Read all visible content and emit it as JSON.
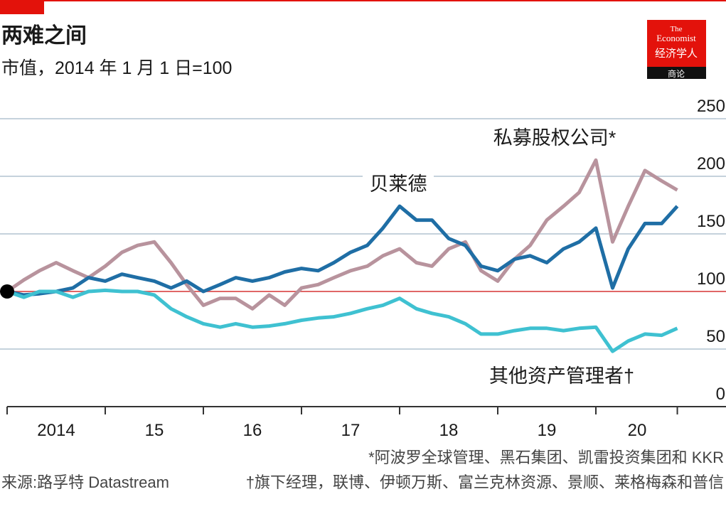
{
  "chart_data": {
    "type": "line",
    "title": "两难之间",
    "subtitle": "市值，2014 年 1 月 1 日=100",
    "source": "来源:路孚特 Datastream",
    "footnotes": [
      "*阿波罗全球管理、黑石集团、凯雷投资集团和 KKR",
      "†旗下经理，联博、伊顿万斯、富兰克林资源、景顺、莱格梅森和普信"
    ],
    "logo": {
      "line1": "The",
      "line2": "Economist",
      "line3": "经济学人",
      "line4": "商论"
    },
    "x": [
      2014,
      2014.17,
      2014.33,
      2014.5,
      2014.67,
      2014.83,
      2015,
      2015.17,
      2015.33,
      2015.5,
      2015.67,
      2015.83,
      2016,
      2016.17,
      2016.33,
      2016.5,
      2016.67,
      2016.83,
      2017,
      2017.17,
      2017.33,
      2017.5,
      2017.67,
      2017.83,
      2018,
      2018.17,
      2018.33,
      2018.5,
      2018.67,
      2018.83,
      2019,
      2019.17,
      2019.33,
      2019.5,
      2019.67,
      2019.83,
      2020,
      2020.17,
      2020.33,
      2020.5,
      2020.67,
      2020.83
    ],
    "series": [
      {
        "name": "私募股权公司*",
        "color": "#b8939d",
        "values": [
          100,
          110,
          118,
          125,
          118,
          112,
          122,
          134,
          140,
          143,
          125,
          106,
          88,
          94,
          94,
          85,
          97,
          88,
          103,
          106,
          112,
          118,
          122,
          131,
          137,
          125,
          122,
          137,
          143,
          118,
          109,
          128,
          140,
          162,
          174,
          186,
          214,
          143,
          174,
          205,
          196,
          188
        ]
      },
      {
        "name": "贝莱德",
        "color": "#1f6ea5",
        "values": [
          100,
          97,
          98,
          100,
          103,
          112,
          109,
          115,
          112,
          109,
          103,
          109,
          100,
          106,
          112,
          109,
          112,
          117,
          120,
          118,
          125,
          134,
          140,
          155,
          174,
          162,
          162,
          146,
          140,
          122,
          118,
          128,
          131,
          125,
          137,
          143,
          155,
          103,
          137,
          159,
          159,
          174
        ]
      },
      {
        "name": "其他资产管理者†",
        "color": "#3fc1d1",
        "values": [
          100,
          95,
          100,
          100,
          95,
          100,
          101,
          100,
          100,
          97,
          85,
          78,
          72,
          69,
          72,
          69,
          70,
          72,
          75,
          77,
          78,
          81,
          85,
          88,
          94,
          85,
          81,
          78,
          72,
          63,
          63,
          66,
          68,
          68,
          66,
          68,
          69,
          48,
          57,
          63,
          62,
          68
        ]
      }
    ],
    "reference_line": 100,
    "xlim": [
      2014,
      2021.33
    ],
    "xtick_marks": [
      2014,
      2015,
      2016,
      2017,
      2018,
      2019,
      2020,
      2020.83
    ],
    "xticks": [
      {
        "value": 2014.5,
        "label": "2014"
      },
      {
        "value": 2015.5,
        "label": "15"
      },
      {
        "value": 2016.5,
        "label": "16"
      },
      {
        "value": 2017.5,
        "label": "17"
      },
      {
        "value": 2018.5,
        "label": "18"
      },
      {
        "value": 2019.5,
        "label": "19"
      },
      {
        "value": 2020.42,
        "label": "20"
      }
    ],
    "ylim": [
      0,
      250
    ],
    "yticks": [
      0,
      50,
      100,
      150,
      200,
      250
    ],
    "grid": true
  }
}
